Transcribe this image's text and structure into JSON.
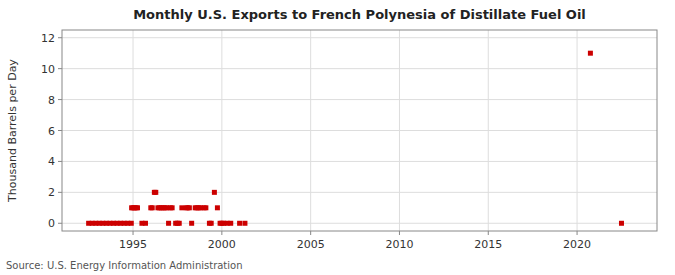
{
  "chart_data": {
    "type": "scatter",
    "title": "Monthly U.S. Exports to French Polynesia of Distillate Fuel Oil",
    "y_label": "Thousand Barrels per Day",
    "source": "Source: U.S. Energy Information Administration",
    "color": "#cc0000",
    "marker": "square",
    "grid": true,
    "xlim": [
      1991.0,
      2024.5
    ],
    "ylim": [
      -0.5,
      12.5
    ],
    "xticks": [
      1995,
      2000,
      2005,
      2010,
      2015,
      2020
    ],
    "yticks": [
      0,
      2,
      4,
      6,
      8,
      10,
      12
    ],
    "x": [
      1992.5,
      1992.7,
      1992.9,
      1993.1,
      1993.3,
      1993.5,
      1993.7,
      1993.9,
      1994.1,
      1994.3,
      1994.5,
      1994.7,
      1994.9,
      1994.92,
      1995.0,
      1995.08,
      1995.17,
      1995.25,
      1995.5,
      1995.7,
      1996.0,
      1996.08,
      1996.2,
      1996.28,
      1996.4,
      1996.5,
      1996.6,
      1996.7,
      1996.8,
      1996.9,
      1997.0,
      1997.1,
      1997.2,
      1997.4,
      1997.5,
      1997.6,
      1997.75,
      1998.0,
      1998.08,
      1998.17,
      1998.3,
      1998.5,
      1998.6,
      1998.7,
      1998.8,
      1999.0,
      1999.1,
      1999.3,
      1999.4,
      1999.58,
      1999.75,
      1999.9,
      2000.0,
      2000.1,
      2000.3,
      2000.5,
      2001.0,
      2001.3,
      2020.75,
      2022.5
    ],
    "values": [
      0.0,
      0.0,
      0.0,
      0.0,
      0.0,
      0.0,
      0.0,
      0.0,
      0.0,
      0.0,
      0.0,
      0.0,
      0.0,
      1.0,
      1.0,
      1.0,
      1.0,
      1.0,
      0.0,
      0.0,
      1.0,
      1.0,
      2.0,
      2.0,
      1.0,
      1.0,
      1.0,
      1.0,
      1.0,
      1.0,
      0.0,
      1.0,
      1.0,
      0.0,
      0.0,
      0.0,
      1.0,
      1.0,
      1.0,
      1.0,
      0.0,
      1.0,
      1.0,
      1.0,
      1.0,
      1.0,
      1.0,
      0.0,
      0.0,
      2.0,
      1.0,
      0.0,
      0.0,
      0.0,
      0.0,
      0.0,
      0.0,
      0.0,
      11.0,
      0.0
    ]
  }
}
